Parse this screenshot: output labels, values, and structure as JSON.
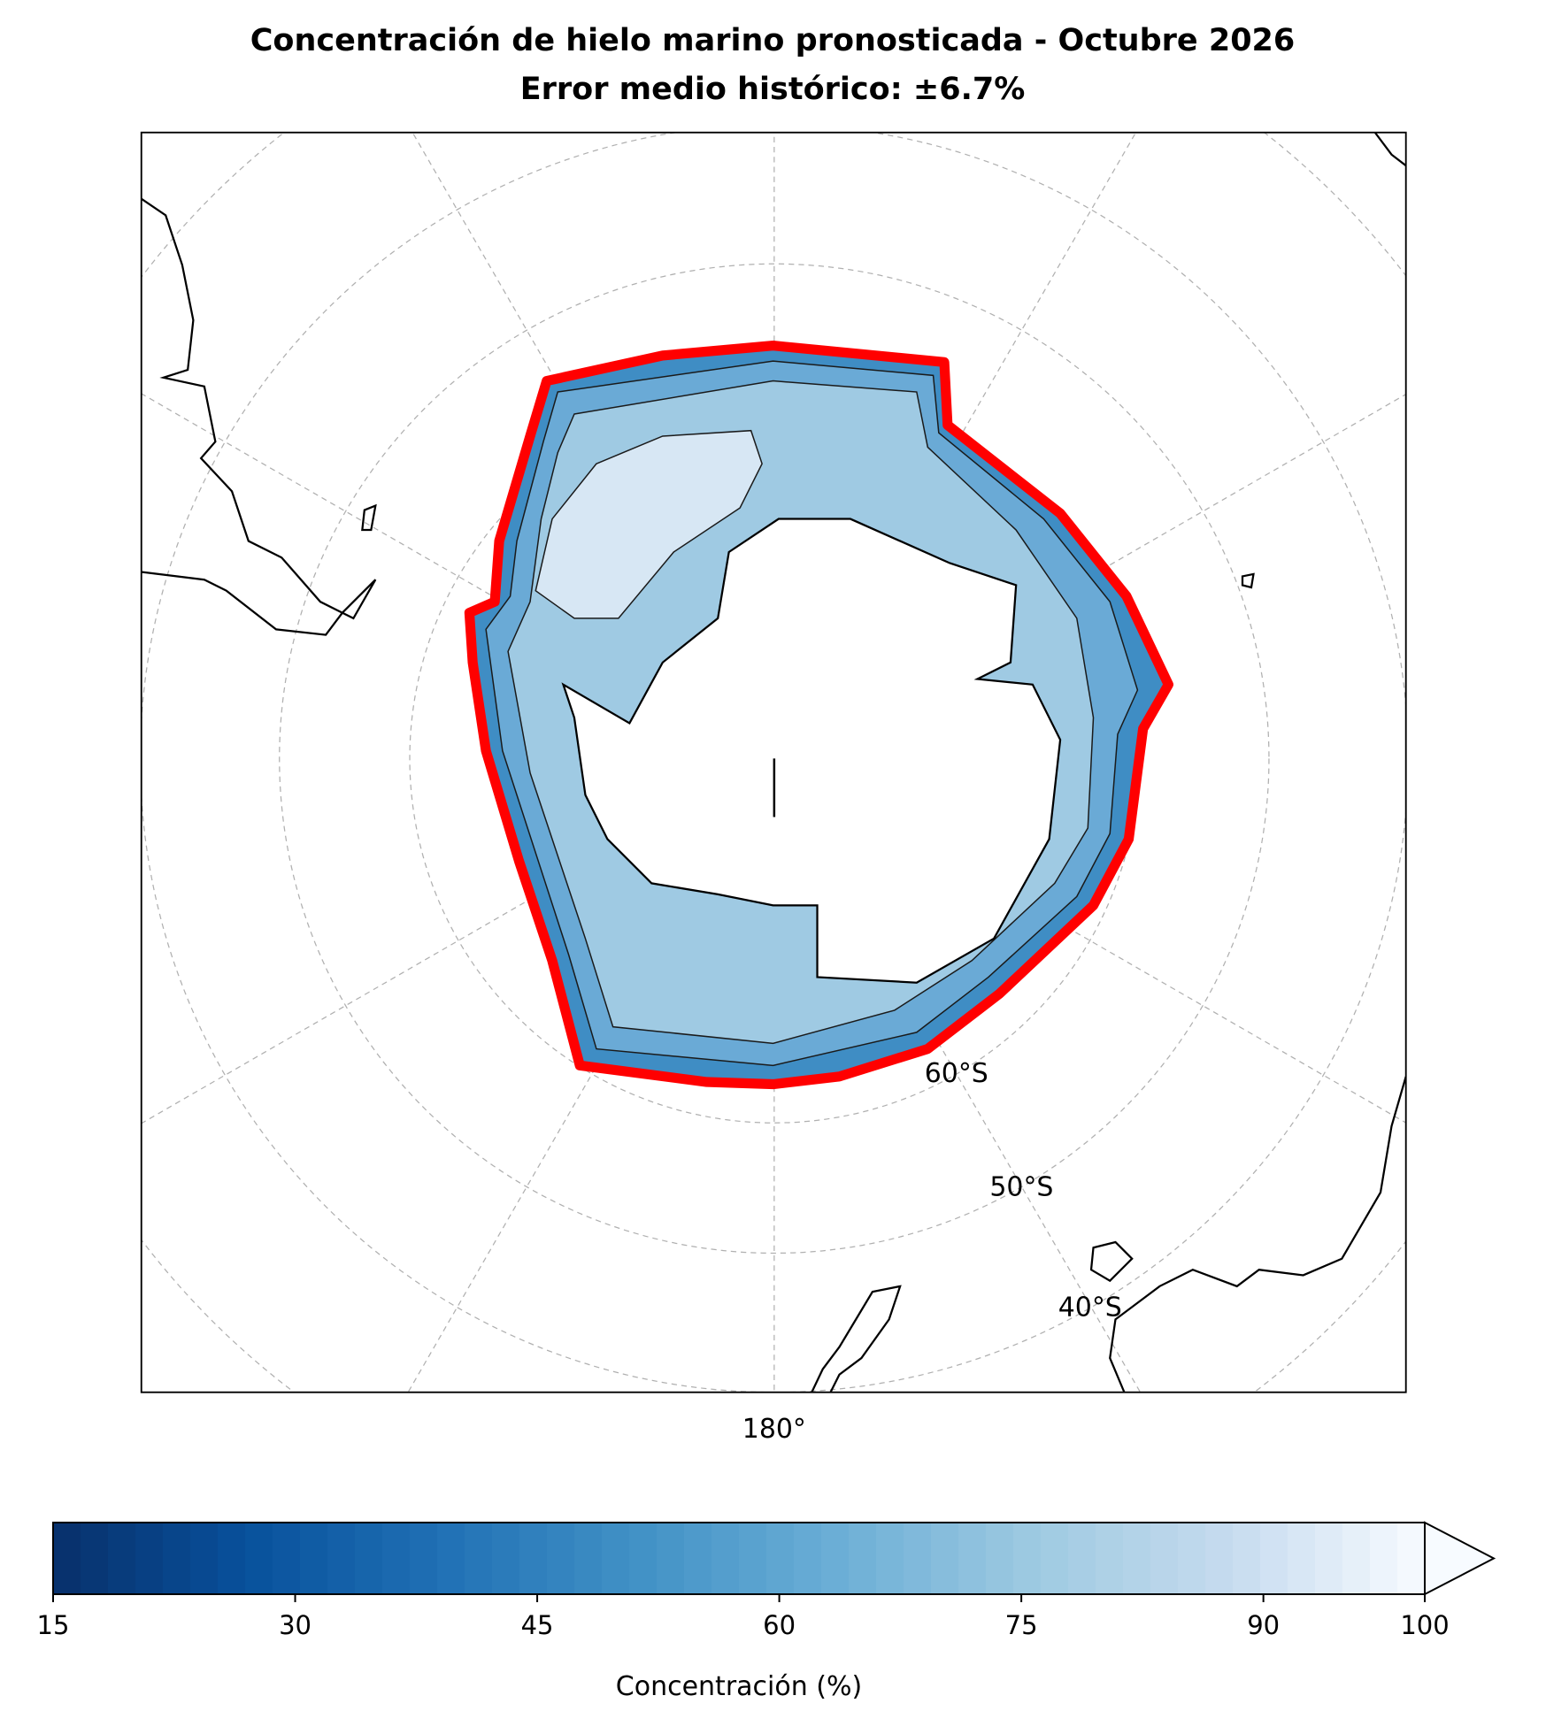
{
  "chart_data": {
    "type": "map",
    "title": "Concentración de hielo marino pronosticada - Octubre 2026",
    "subtitle": "Error medio histórico: ±6.7%",
    "parallel_labels": [
      "60°S",
      "50°S",
      "40°S"
    ],
    "meridian_label": "180°",
    "ice_edge_color": "#ff0000",
    "colorbar": {
      "label": "Concentración (%)",
      "lim": [
        15,
        100
      ],
      "ticks": [
        15,
        30,
        45,
        60,
        75,
        90,
        100
      ],
      "colors": [
        "#08306b",
        "#08519c",
        "#2171b5",
        "#4292c6",
        "#6baed6",
        "#9ecae1",
        "#c6dbef",
        "#f7fbff"
      ],
      "extend": "max"
    }
  }
}
